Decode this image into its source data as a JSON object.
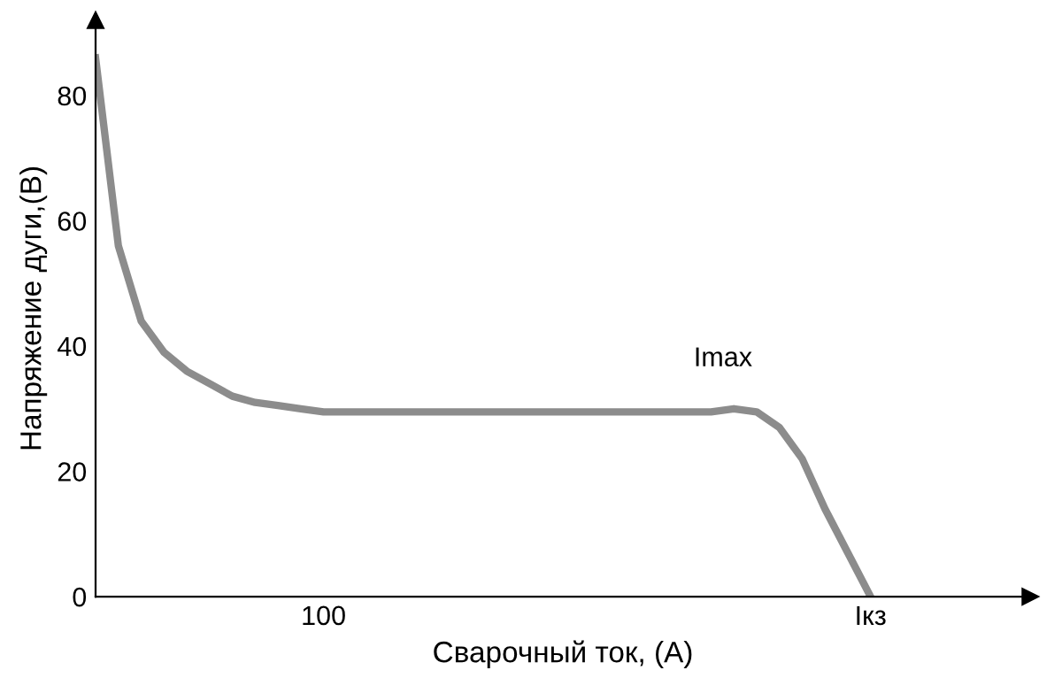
{
  "chart_data": {
    "type": "line",
    "xlabel": "Сварочный ток, (А)",
    "ylabel": "Напряжение дуги,(В)",
    "categories": [
      null,
      null,
      null,
      null,
      null,
      null,
      null,
      null,
      null,
      null,
      "100",
      null,
      null,
      null,
      null,
      null,
      null,
      null,
      null,
      null,
      null,
      null,
      null,
      null,
      null,
      null,
      null,
      null,
      null,
      null,
      null,
      null,
      null,
      null,
      "Iкз",
      null,
      null,
      null,
      null,
      null,
      null,
      null
    ],
    "series": [
      {
        "color": "#8c8c8c",
        "values": [
          86,
          56,
          44,
          39,
          36,
          34,
          32,
          31,
          30.5,
          30,
          29.5,
          29.5,
          29.5,
          29.5,
          29.5,
          29.5,
          29.5,
          29.5,
          29.5,
          29.5,
          29.5,
          29.5,
          29.5,
          29.5,
          29.5,
          29.5,
          29.5,
          29.5,
          30,
          29.5,
          27,
          22,
          14,
          7,
          0,
          null,
          null,
          null,
          null,
          null,
          null,
          null
        ]
      }
    ],
    "annotations": [
      "Imax"
    ],
    "ylim": [
      0,
      92
    ],
    "yticks": [
      0,
      20,
      40,
      60,
      80
    ],
    "grid": false,
    "marker": "none",
    "line_style": "solid"
  }
}
